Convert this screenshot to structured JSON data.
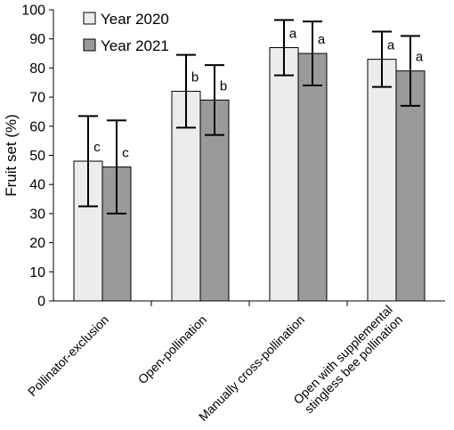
{
  "chart_data": {
    "type": "bar",
    "title": "",
    "xlabel": "",
    "ylabel": "Fruit set (%)",
    "ylim": [
      0,
      100
    ],
    "yticks": [
      0,
      10,
      20,
      30,
      40,
      50,
      60,
      70,
      80,
      90,
      100
    ],
    "grid": false,
    "legend_position": "top-left",
    "categories": [
      [
        "Pollinator-exclusion"
      ],
      [
        "Open-pollination"
      ],
      [
        "Manually cross-pollination"
      ],
      [
        "Open  with  supplemental",
        "stingless bee pollination"
      ]
    ],
    "series": [
      {
        "name": "Year 2020",
        "color": "#ececec",
        "values": [
          48,
          72,
          87,
          83
        ],
        "error_low": [
          32.5,
          59.5,
          77.5,
          73.5
        ],
        "error_high": [
          63.5,
          84.5,
          96.5,
          92.5
        ],
        "labels": [
          "c",
          "b",
          "a",
          "a"
        ]
      },
      {
        "name": "Year 2021",
        "color": "#9a9a9a",
        "values": [
          46,
          69,
          85,
          79
        ],
        "error_low": [
          30,
          57,
          74,
          67
        ],
        "error_high": [
          62,
          81,
          96,
          91
        ],
        "labels": [
          "c",
          "b",
          "a",
          "a"
        ]
      }
    ]
  }
}
